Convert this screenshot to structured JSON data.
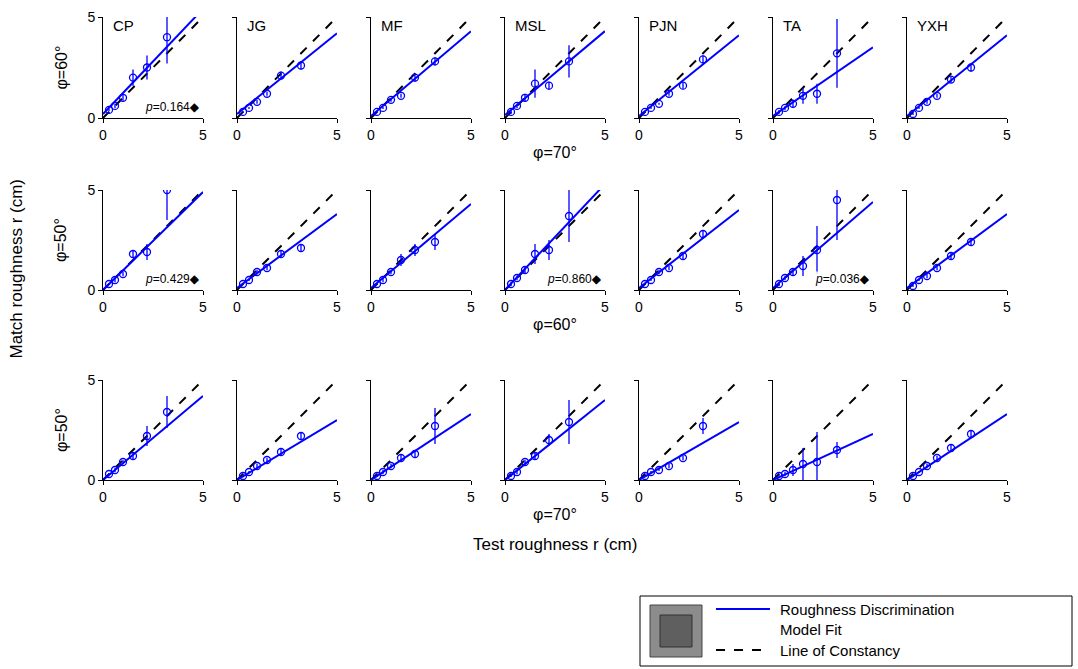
{
  "figure": {
    "ylabel": "Match roughness r (cm)",
    "xlabel": "Test roughness r (cm)",
    "legend": "bottom right",
    "grid": false,
    "marker": "circle-open",
    "series": [
      {
        "name": "Roughness Discrimination Model Fit",
        "color": "#0000ff",
        "line_style": "solid"
      },
      {
        "name": "Line of Constancy",
        "color": "#000000",
        "line_style": "dashed"
      }
    ]
  },
  "chart_data": [
    {
      "type": "scatter",
      "title": "CP",
      "ylabel": "φ=60°",
      "annotation": "p=0.164◆",
      "xlim": [
        0,
        5
      ],
      "ylim": [
        0,
        5
      ],
      "xticks": [
        0,
        5
      ],
      "yticks": [
        0,
        5
      ],
      "x": [
        0.3,
        0.6,
        1.0,
        1.5,
        2.2,
        3.2
      ],
      "values": [
        0.4,
        0.6,
        1.0,
        2.0,
        2.5,
        4.0
      ],
      "error": [
        0.05,
        0.1,
        0.15,
        0.4,
        0.6,
        1.3
      ],
      "fit": {
        "x": [
          0,
          5
        ],
        "values": [
          0.2,
          5.4
        ]
      },
      "constancy": {
        "x": [
          0,
          5
        ],
        "values": [
          0,
          5
        ]
      }
    },
    {
      "type": "scatter",
      "title": "JG",
      "tick_labels": "x",
      "xlim": [
        0,
        5
      ],
      "ylim": [
        0,
        5
      ],
      "xticks": [
        0,
        5
      ],
      "yticks": [
        0,
        5
      ],
      "x": [
        0.3,
        0.6,
        1.0,
        1.5,
        2.2,
        3.2
      ],
      "values": [
        0.3,
        0.5,
        0.8,
        1.2,
        2.1,
        2.6
      ],
      "error": [
        0.05,
        0.05,
        0.1,
        0.1,
        0.2,
        0.2
      ],
      "fit": {
        "x": [
          0,
          5
        ],
        "values": [
          0.2,
          4.2
        ]
      },
      "constancy": {
        "x": [
          0,
          5
        ],
        "values": [
          0,
          5
        ]
      }
    },
    {
      "type": "scatter",
      "title": "MF",
      "tick_labels": "x",
      "xlim": [
        0,
        5
      ],
      "ylim": [
        0,
        5
      ],
      "xticks": [
        0,
        5
      ],
      "yticks": [
        0,
        5
      ],
      "x": [
        0.3,
        0.6,
        1.0,
        1.5,
        2.2,
        3.2
      ],
      "values": [
        0.3,
        0.5,
        0.9,
        1.1,
        2.0,
        2.8
      ],
      "error": [
        0.05,
        0.05,
        0.1,
        0.1,
        0.2,
        0.2
      ],
      "fit": {
        "x": [
          0,
          5
        ],
        "values": [
          0.1,
          4.3
        ]
      },
      "constancy": {
        "x": [
          0,
          5
        ],
        "values": [
          0,
          5
        ]
      }
    },
    {
      "type": "scatter",
      "title": "MSL",
      "tick_labels": "x",
      "xlabel": "φ=70°",
      "xlim": [
        0,
        5
      ],
      "ylim": [
        0,
        5
      ],
      "xticks": [
        0,
        5
      ],
      "yticks": [
        0,
        5
      ],
      "x": [
        0.3,
        0.6,
        1.0,
        1.5,
        2.2,
        3.2
      ],
      "values": [
        0.3,
        0.6,
        1.0,
        1.7,
        1.6,
        2.8
      ],
      "error": [
        0.1,
        0.1,
        0.2,
        0.7,
        0.2,
        0.8
      ],
      "fit": {
        "x": [
          0,
          5
        ],
        "values": [
          0.15,
          4.3
        ]
      },
      "constancy": {
        "x": [
          0,
          5
        ],
        "values": [
          0,
          5
        ]
      }
    },
    {
      "type": "scatter",
      "title": "PJN",
      "tick_labels": "x",
      "xlim": [
        0,
        5
      ],
      "ylim": [
        0,
        5
      ],
      "xticks": [
        0,
        5
      ],
      "yticks": [
        0,
        5
      ],
      "x": [
        0.3,
        0.6,
        1.0,
        1.5,
        2.2,
        3.2
      ],
      "values": [
        0.3,
        0.5,
        0.7,
        1.2,
        1.6,
        2.9
      ],
      "error": [
        0.05,
        0.05,
        0.05,
        0.1,
        0.15,
        0.2
      ],
      "fit": {
        "x": [
          0,
          5
        ],
        "values": [
          0.1,
          4.1
        ]
      },
      "constancy": {
        "x": [
          0,
          5
        ],
        "values": [
          0,
          5
        ]
      }
    },
    {
      "type": "scatter",
      "title": "TA",
      "tick_labels": "x",
      "xlim": [
        0,
        5
      ],
      "ylim": [
        0,
        5
      ],
      "xticks": [
        0,
        5
      ],
      "yticks": [
        0,
        5
      ],
      "x": [
        0.3,
        0.6,
        1.0,
        1.5,
        2.2,
        3.2
      ],
      "values": [
        0.3,
        0.5,
        0.7,
        1.1,
        1.2,
        3.2
      ],
      "error": [
        0.1,
        0.1,
        0.2,
        0.4,
        0.5,
        1.7
      ],
      "fit": {
        "x": [
          0,
          5
        ],
        "values": [
          0.1,
          3.5
        ]
      },
      "constancy": {
        "x": [
          0,
          5
        ],
        "values": [
          0,
          5
        ]
      }
    },
    {
      "type": "scatter",
      "title": "YXH",
      "tick_labels": "x",
      "xlim": [
        0,
        5
      ],
      "ylim": [
        0,
        5
      ],
      "xticks": [
        0,
        5
      ],
      "yticks": [
        0,
        5
      ],
      "x": [
        0.3,
        0.6,
        1.0,
        1.5,
        2.2,
        3.2
      ],
      "values": [
        0.2,
        0.5,
        0.8,
        1.1,
        1.9,
        2.5
      ],
      "error": [
        0.05,
        0.05,
        0.1,
        0.1,
        0.15,
        0.2
      ],
      "fit": {
        "x": [
          0,
          5
        ],
        "values": [
          0.1,
          4.1
        ]
      },
      "constancy": {
        "x": [
          0,
          5
        ],
        "values": [
          0,
          5
        ]
      }
    },
    {
      "type": "scatter",
      "ylabel": "φ=50°",
      "annotation": "p=0.429◆",
      "xlim": [
        0,
        5
      ],
      "ylim": [
        0,
        5
      ],
      "xticks": [
        0,
        5
      ],
      "yticks": [
        0,
        5
      ],
      "x": [
        0.3,
        0.6,
        1.0,
        1.5,
        2.2,
        3.2
      ],
      "values": [
        0.3,
        0.5,
        0.8,
        1.8,
        1.9,
        5.0
      ],
      "error": [
        0.05,
        0.1,
        0.1,
        0.2,
        0.4,
        1.5
      ],
      "fit": {
        "x": [
          0,
          5
        ],
        "values": [
          0.0,
          4.9
        ]
      },
      "constancy": {
        "x": [
          0,
          5
        ],
        "values": [
          0,
          5
        ]
      }
    },
    {
      "type": "scatter",
      "tick_labels": "x",
      "xlim": [
        0,
        5
      ],
      "ylim": [
        0,
        5
      ],
      "xticks": [
        0,
        5
      ],
      "yticks": [
        0,
        5
      ],
      "x": [
        0.3,
        0.6,
        1.0,
        1.5,
        2.2,
        3.2
      ],
      "values": [
        0.3,
        0.5,
        0.9,
        1.1,
        1.8,
        2.1
      ],
      "error": [
        0.05,
        0.05,
        0.1,
        0.1,
        0.15,
        0.2
      ],
      "fit": {
        "x": [
          0,
          5
        ],
        "values": [
          0.1,
          3.8
        ]
      },
      "constancy": {
        "x": [
          0,
          5
        ],
        "values": [
          0,
          5
        ]
      }
    },
    {
      "type": "scatter",
      "tick_labels": "x",
      "xlim": [
        0,
        5
      ],
      "ylim": [
        0,
        5
      ],
      "xticks": [
        0,
        5
      ],
      "yticks": [
        0,
        5
      ],
      "x": [
        0.3,
        0.6,
        1.0,
        1.5,
        2.2,
        3.2
      ],
      "values": [
        0.3,
        0.5,
        0.9,
        1.5,
        2.0,
        2.4
      ],
      "error": [
        0.05,
        0.1,
        0.1,
        0.3,
        0.3,
        0.4
      ],
      "fit": {
        "x": [
          0,
          5
        ],
        "values": [
          0.1,
          4.3
        ]
      },
      "constancy": {
        "x": [
          0,
          5
        ],
        "values": [
          0,
          5
        ]
      }
    },
    {
      "type": "scatter",
      "tick_labels": "x",
      "xlabel": "φ=60°",
      "annotation": "p=0.860◆",
      "xlim": [
        0,
        5
      ],
      "ylim": [
        0,
        5
      ],
      "xticks": [
        0,
        5
      ],
      "yticks": [
        0,
        5
      ],
      "x": [
        0.3,
        0.6,
        1.0,
        1.5,
        2.2,
        3.2
      ],
      "values": [
        0.3,
        0.6,
        1.0,
        1.8,
        2.0,
        3.7
      ],
      "error": [
        0.1,
        0.1,
        0.2,
        0.5,
        0.5,
        1.3
      ],
      "fit": {
        "x": [
          0,
          5
        ],
        "values": [
          0.0,
          5.3
        ]
      },
      "constancy": {
        "x": [
          0,
          5
        ],
        "values": [
          0,
          5
        ]
      }
    },
    {
      "type": "scatter",
      "tick_labels": "x",
      "xlim": [
        0,
        5
      ],
      "ylim": [
        0,
        5
      ],
      "xticks": [
        0,
        5
      ],
      "yticks": [
        0,
        5
      ],
      "x": [
        0.3,
        0.6,
        1.0,
        1.5,
        2.2,
        3.2
      ],
      "values": [
        0.3,
        0.5,
        0.9,
        1.1,
        1.7,
        2.8
      ],
      "error": [
        0.05,
        0.05,
        0.1,
        0.1,
        0.15,
        0.2
      ],
      "fit": {
        "x": [
          0,
          5
        ],
        "values": [
          0.1,
          4.0
        ]
      },
      "constancy": {
        "x": [
          0,
          5
        ],
        "values": [
          0,
          5
        ]
      }
    },
    {
      "type": "scatter",
      "tick_labels": "x",
      "annotation": "p=0.036◆",
      "xlim": [
        0,
        5
      ],
      "ylim": [
        0,
        5
      ],
      "xticks": [
        0,
        5
      ],
      "yticks": [
        0,
        5
      ],
      "x": [
        0.3,
        0.6,
        1.0,
        1.5,
        2.2,
        3.2
      ],
      "values": [
        0.3,
        0.6,
        0.9,
        1.2,
        2.0,
        4.5
      ],
      "error": [
        0.1,
        0.1,
        0.2,
        0.5,
        1.2,
        2.0
      ],
      "fit": {
        "x": [
          0,
          5
        ],
        "values": [
          0.1,
          4.4
        ]
      },
      "constancy": {
        "x": [
          0,
          5
        ],
        "values": [
          0,
          5
        ]
      }
    },
    {
      "type": "scatter",
      "tick_labels": "x",
      "xlim": [
        0,
        5
      ],
      "ylim": [
        0,
        5
      ],
      "xticks": [
        0,
        5
      ],
      "yticks": [
        0,
        5
      ],
      "x": [
        0.3,
        0.6,
        1.0,
        1.5,
        2.2,
        3.2
      ],
      "values": [
        0.2,
        0.5,
        0.7,
        1.1,
        1.7,
        2.4
      ],
      "error": [
        0.05,
        0.05,
        0.1,
        0.1,
        0.15,
        0.2
      ],
      "fit": {
        "x": [
          0,
          5
        ],
        "values": [
          0.1,
          3.8
        ]
      },
      "constancy": {
        "x": [
          0,
          5
        ],
        "values": [
          0,
          5
        ]
      }
    },
    {
      "type": "scatter",
      "ylabel": "φ=50°",
      "xlim": [
        0,
        5
      ],
      "ylim": [
        0,
        5
      ],
      "xticks": [
        0,
        5
      ],
      "yticks": [
        0,
        5
      ],
      "x": [
        0.3,
        0.6,
        1.0,
        1.5,
        2.2,
        3.2
      ],
      "values": [
        0.3,
        0.5,
        0.9,
        1.2,
        2.2,
        3.4
      ],
      "error": [
        0.05,
        0.1,
        0.1,
        0.2,
        0.5,
        0.8
      ],
      "fit": {
        "x": [
          0,
          5
        ],
        "values": [
          0.0,
          4.2
        ]
      },
      "constancy": {
        "x": [
          0,
          5
        ],
        "values": [
          0,
          5
        ]
      }
    },
    {
      "type": "scatter",
      "tick_labels": "x",
      "xlim": [
        0,
        5
      ],
      "ylim": [
        0,
        5
      ],
      "xticks": [
        0,
        5
      ],
      "yticks": [
        0,
        5
      ],
      "x": [
        0.3,
        0.6,
        1.0,
        1.5,
        2.2,
        3.2
      ],
      "values": [
        0.2,
        0.4,
        0.7,
        1.0,
        1.4,
        2.2
      ],
      "error": [
        0.05,
        0.05,
        0.1,
        0.1,
        0.15,
        0.2
      ],
      "fit": {
        "x": [
          0,
          5
        ],
        "values": [
          0.0,
          3.0
        ]
      },
      "constancy": {
        "x": [
          0,
          5
        ],
        "values": [
          0,
          5
        ]
      }
    },
    {
      "type": "scatter",
      "tick_labels": "x",
      "xlim": [
        0,
        5
      ],
      "ylim": [
        0,
        5
      ],
      "xticks": [
        0,
        5
      ],
      "yticks": [
        0,
        5
      ],
      "x": [
        0.3,
        0.6,
        1.0,
        1.5,
        2.2,
        3.2
      ],
      "values": [
        0.2,
        0.4,
        0.7,
        1.1,
        1.3,
        2.7
      ],
      "error": [
        0.05,
        0.1,
        0.1,
        0.2,
        0.2,
        0.9
      ],
      "fit": {
        "x": [
          0,
          5
        ],
        "values": [
          0.0,
          3.3
        ]
      },
      "constancy": {
        "x": [
          0,
          5
        ],
        "values": [
          0,
          5
        ]
      }
    },
    {
      "type": "scatter",
      "tick_labels": "x",
      "xlabel": "φ=70°",
      "xlim": [
        0,
        5
      ],
      "ylim": [
        0,
        5
      ],
      "xticks": [
        0,
        5
      ],
      "yticks": [
        0,
        5
      ],
      "x": [
        0.3,
        0.6,
        1.0,
        1.5,
        2.2,
        3.2
      ],
      "values": [
        0.2,
        0.4,
        0.9,
        1.2,
        2.0,
        2.9
      ],
      "error": [
        0.05,
        0.1,
        0.1,
        0.2,
        0.3,
        1.1
      ],
      "fit": {
        "x": [
          0,
          5
        ],
        "values": [
          0.0,
          4.0
        ]
      },
      "constancy": {
        "x": [
          0,
          5
        ],
        "values": [
          0,
          5
        ]
      }
    },
    {
      "type": "scatter",
      "tick_labels": "x",
      "xlim": [
        0,
        5
      ],
      "ylim": [
        0,
        5
      ],
      "xticks": [
        0,
        5
      ],
      "yticks": [
        0,
        5
      ],
      "x": [
        0.3,
        0.6,
        1.0,
        1.5,
        2.2,
        3.2
      ],
      "values": [
        0.2,
        0.4,
        0.5,
        0.7,
        1.1,
        2.7
      ],
      "error": [
        0.05,
        0.05,
        0.05,
        0.1,
        0.1,
        0.4
      ],
      "fit": {
        "x": [
          0,
          5
        ],
        "values": [
          0.0,
          2.9
        ]
      },
      "constancy": {
        "x": [
          0,
          5
        ],
        "values": [
          0,
          5
        ]
      }
    },
    {
      "type": "scatter",
      "tick_labels": "x",
      "xlim": [
        0,
        5
      ],
      "ylim": [
        0,
        5
      ],
      "xticks": [
        0,
        5
      ],
      "yticks": [
        0,
        5
      ],
      "x": [
        0.3,
        0.6,
        1.0,
        1.5,
        2.2,
        3.2
      ],
      "values": [
        0.2,
        0.3,
        0.5,
        0.8,
        0.9,
        1.5
      ],
      "error": [
        0.05,
        0.1,
        0.3,
        0.8,
        1.5,
        0.4
      ],
      "fit": {
        "x": [
          0,
          5
        ],
        "values": [
          0.0,
          2.3
        ]
      },
      "constancy": {
        "x": [
          0,
          5
        ],
        "values": [
          0,
          5
        ]
      }
    },
    {
      "type": "scatter",
      "tick_labels": "x",
      "xlim": [
        0,
        5
      ],
      "ylim": [
        0,
        5
      ],
      "xticks": [
        0,
        5
      ],
      "yticks": [
        0,
        5
      ],
      "x": [
        0.3,
        0.6,
        1.0,
        1.5,
        2.2,
        3.2
      ],
      "values": [
        0.2,
        0.4,
        0.7,
        1.1,
        1.6,
        2.3
      ],
      "error": [
        0.05,
        0.05,
        0.1,
        0.1,
        0.15,
        0.2
      ],
      "fit": {
        "x": [
          0,
          5
        ],
        "values": [
          0.0,
          3.3
        ]
      },
      "constancy": {
        "x": [
          0,
          5
        ],
        "values": [
          0,
          5
        ]
      }
    }
  ]
}
